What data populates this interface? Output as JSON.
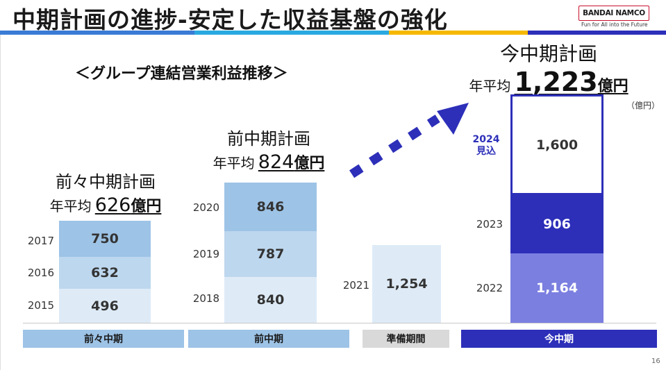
{
  "title": "中期計画の進捗-安定した収益基盤の強化",
  "logo": {
    "brand": "BANDAI NAMCO",
    "tagline": "Fun for All into the Future"
  },
  "subtitle": "＜グループ連結営業利益推移＞",
  "unit_label": "（億円）",
  "page_number": "16",
  "plans": [
    {
      "name": "前々中期計画",
      "avg_label": "年平均",
      "avg_value": "626",
      "avg_unit": "億円"
    },
    {
      "name": "前中期計画",
      "avg_label": "年平均",
      "avg_value": "824",
      "avg_unit": "億円"
    },
    {
      "name": "今中期計画",
      "avg_label": "年平均",
      "avg_value": "1,223",
      "avg_unit": "億円"
    }
  ],
  "chart_data": {
    "type": "bar",
    "unit": "億円",
    "groups": [
      {
        "category": "前々中期",
        "years": [
          "2015",
          "2016",
          "2017"
        ],
        "values": [
          496,
          632,
          750
        ],
        "labels": [
          "496",
          "632",
          "750"
        ]
      },
      {
        "category": "前中期",
        "years": [
          "2018",
          "2019",
          "2020"
        ],
        "values": [
          840,
          787,
          846
        ],
        "labels": [
          "840",
          "787",
          "846"
        ]
      },
      {
        "category": "準備期間",
        "years": [
          "2021"
        ],
        "values": [
          1254
        ],
        "labels": [
          "1,254"
        ]
      },
      {
        "category": "今中期",
        "years": [
          "2022",
          "2023",
          "2024"
        ],
        "values": [
          1164,
          906,
          1600
        ],
        "labels": [
          "1,164",
          "906",
          "1,600"
        ],
        "year_notes": [
          "",
          "",
          "見込"
        ]
      }
    ]
  },
  "colors": {
    "dark_blue": "#2d2fb9",
    "mid_blue_1": "#9dc3e6",
    "mid_blue_2": "#bdd7ee",
    "light_blue": "#deebf7",
    "purple": "#7b7fe0",
    "category_light": "#9dc3e6",
    "category_gray": "#d9d9d9"
  }
}
